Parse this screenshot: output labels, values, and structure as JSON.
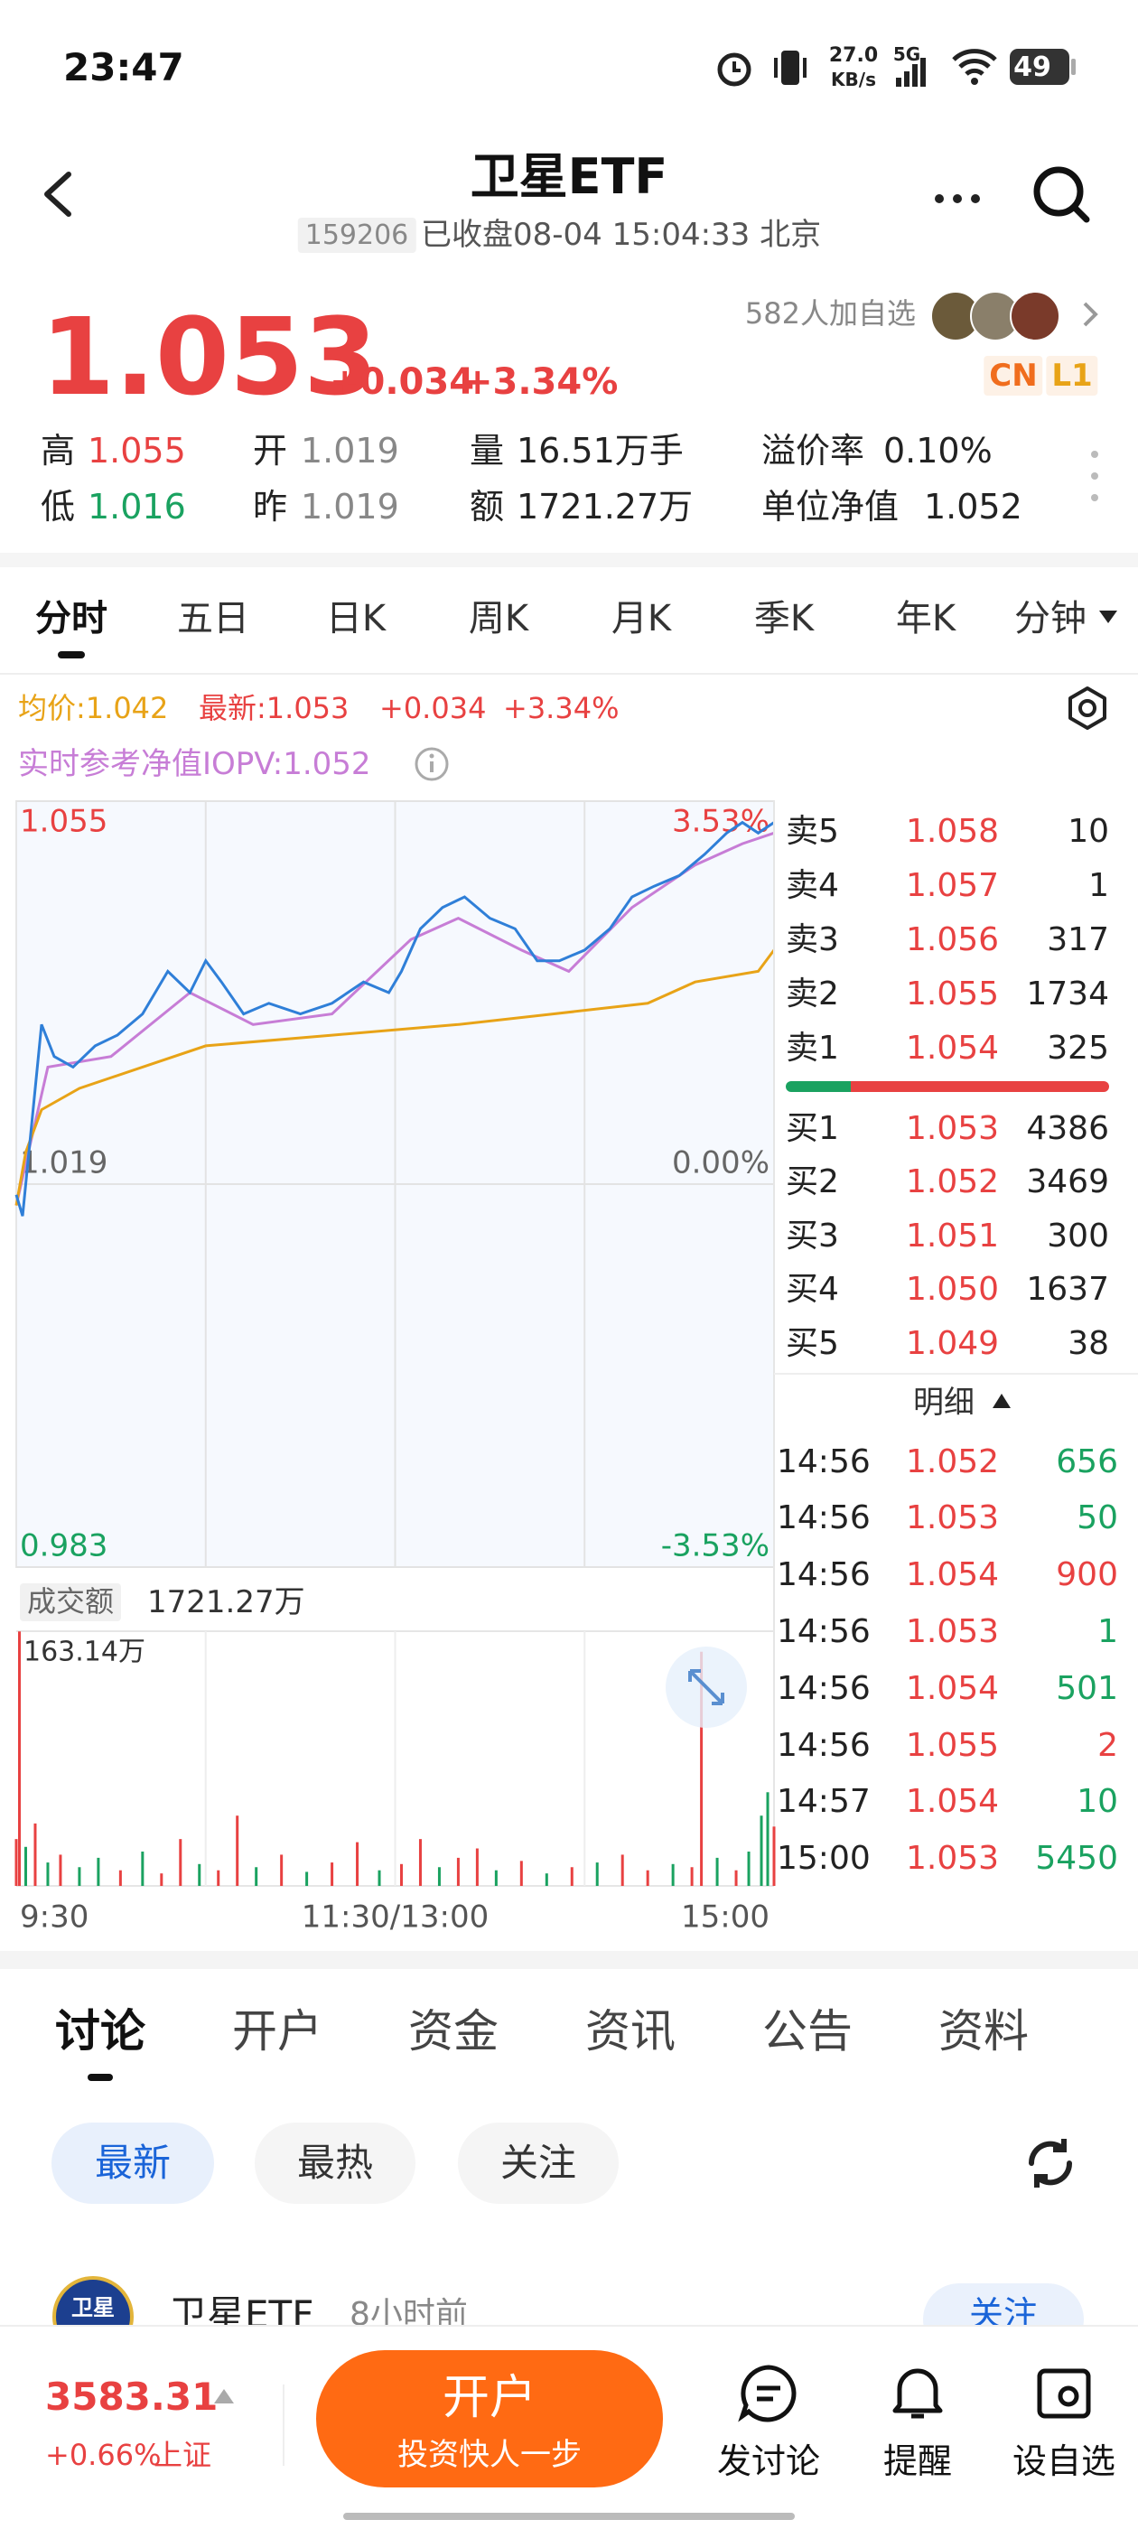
{
  "status_bar": {
    "time": "23:47",
    "net_speed": "27.0",
    "net_unit": "KB/s",
    "signal": "5G",
    "battery": "49"
  },
  "header": {
    "title": "卫星ETF",
    "code": "159206",
    "status": "已收盘08-04 15:04:33 北京"
  },
  "quote": {
    "price": "1.053",
    "change": "+0.034",
    "change_pct": "+3.34%",
    "watchers": "582人加自选",
    "badges": [
      "CN",
      "L1"
    ],
    "stats": [
      {
        "label": "高",
        "value": "1.055"
      },
      {
        "label": "开",
        "value": "1.019"
      },
      {
        "label": "量",
        "value": "16.51万手"
      },
      {
        "label": "溢价率",
        "value": "0.10%"
      },
      {
        "label": "低",
        "value": "1.016"
      },
      {
        "label": "昨",
        "value": "1.019"
      },
      {
        "label": "额",
        "value": "1721.27万"
      },
      {
        "label": "单位净值",
        "value": "1.052"
      }
    ]
  },
  "chart_tabs": [
    "分时",
    "五日",
    "日K",
    "周K",
    "月K",
    "季K",
    "年K",
    "分钟"
  ],
  "legend": {
    "avg": "均价:1.042",
    "latest": "最新:1.053",
    "change": "+0.034",
    "change_pct": "+3.34%",
    "iopv": "实时参考净值IOPV:1.052"
  },
  "chart_data": [
    {
      "type": "line",
      "xlim": [
        0,
        240
      ],
      "xticks": [
        {
          "value": 0,
          "label": "9:30"
        },
        {
          "value": 120,
          "label": "11:30/13:00"
        },
        {
          "value": 240,
          "label": "15:00"
        }
      ],
      "ylim": [
        0.983,
        1.055
      ],
      "yticks": [
        1.055,
        1.019,
        0.983
      ],
      "y2lim": [
        -3.53,
        3.53
      ],
      "y2ticks": [
        {
          "value": 3.53,
          "label": "3.53%"
        },
        {
          "value": 0,
          "label": "0.00%"
        },
        {
          "value": -3.53,
          "label": "-3.53%"
        }
      ],
      "grid": true,
      "series": [
        {
          "color": "#c77dd6",
          "x": [
            0,
            10,
            30,
            55,
            75,
            100,
            125,
            140,
            160,
            175,
            195,
            215,
            230,
            240
          ],
          "values": [
            1.017,
            1.03,
            1.031,
            1.037,
            1.034,
            1.035,
            1.042,
            1.044,
            1.041,
            1.039,
            1.045,
            1.049,
            1.051,
            1.052
          ]
        },
        {
          "color": "#e8a317",
          "x": [
            0,
            3,
            8,
            20,
            40,
            60,
            100,
            140,
            170,
            200,
            215,
            235,
            240
          ],
          "values": [
            1.017,
            1.022,
            1.026,
            1.028,
            1.03,
            1.032,
            1.033,
            1.034,
            1.035,
            1.036,
            1.038,
            1.039,
            1.041
          ]
        },
        {
          "color": "#2f7fd8",
          "x": [
            0,
            2,
            5,
            8,
            12,
            18,
            25,
            32,
            40,
            48,
            55,
            60,
            65,
            72,
            80,
            90,
            100,
            110,
            118,
            122,
            128,
            135,
            142,
            150,
            158,
            165,
            172,
            180,
            188,
            195,
            202,
            210,
            218,
            225,
            230,
            235,
            240
          ],
          "values": [
            1.018,
            1.016,
            1.025,
            1.034,
            1.031,
            1.03,
            1.032,
            1.033,
            1.035,
            1.039,
            1.037,
            1.04,
            1.038,
            1.035,
            1.036,
            1.035,
            1.036,
            1.038,
            1.037,
            1.039,
            1.043,
            1.045,
            1.046,
            1.044,
            1.043,
            1.04,
            1.04,
            1.041,
            1.043,
            1.046,
            1.047,
            1.048,
            1.05,
            1.052,
            1.053,
            1.052,
            1.053
          ]
        }
      ]
    },
    {
      "type": "bar",
      "label": "成交额",
      "total": "1721.27万",
      "xlim": [
        0,
        240
      ],
      "ylim": [
        0,
        163.14
      ],
      "yticks": [
        {
          "value": 163.14,
          "label": "163.14万"
        }
      ],
      "x": [
        0,
        1,
        3,
        6,
        10,
        14,
        20,
        26,
        33,
        40,
        46,
        52,
        58,
        64,
        70,
        76,
        84,
        92,
        100,
        108,
        115,
        122,
        128,
        134,
        140,
        146,
        152,
        160,
        168,
        176,
        184,
        192,
        200,
        208,
        214,
        217,
        222,
        228,
        232,
        236,
        238,
        240
      ],
      "values": [
        30,
        163,
        25,
        40,
        15,
        20,
        12,
        18,
        10,
        22,
        8,
        30,
        14,
        10,
        45,
        12,
        20,
        9,
        15,
        28,
        10,
        14,
        30,
        12,
        18,
        24,
        10,
        16,
        8,
        12,
        15,
        20,
        10,
        14,
        12,
        150,
        18,
        10,
        22,
        45,
        60,
        38
      ],
      "colors": [
        "#e84141",
        "#e84141",
        "#1aa260",
        "#e84141",
        "#1aa260",
        "#e84141",
        "#1aa260",
        "#1aa260",
        "#e84141",
        "#1aa260",
        "#e84141",
        "#e84141",
        "#1aa260",
        "#e84141",
        "#e84141",
        "#1aa260",
        "#e84141",
        "#1aa260",
        "#e84141",
        "#e84141",
        "#1aa260",
        "#e84141",
        "#e84141",
        "#1aa260",
        "#e84141",
        "#e84141",
        "#1aa260",
        "#e84141",
        "#1aa260",
        "#e84141",
        "#1aa260",
        "#e84141",
        "#e84141",
        "#1aa260",
        "#e84141",
        "#e84141",
        "#1aa260",
        "#e84141",
        "#1aa260",
        "#1aa260",
        "#1aa260",
        "#e84141"
      ]
    }
  ],
  "order_book": {
    "asks": [
      {
        "label": "卖5",
        "price": "1.058",
        "volume": "10"
      },
      {
        "label": "卖4",
        "price": "1.057",
        "volume": "1"
      },
      {
        "label": "卖3",
        "price": "1.056",
        "volume": "317"
      },
      {
        "label": "卖2",
        "price": "1.055",
        "volume": "1734"
      },
      {
        "label": "卖1",
        "price": "1.054",
        "volume": "325"
      }
    ],
    "bids": [
      {
        "label": "买1",
        "price": "1.053",
        "volume": "4386"
      },
      {
        "label": "买2",
        "price": "1.052",
        "volume": "3469"
      },
      {
        "label": "买3",
        "price": "1.051",
        "volume": "300"
      },
      {
        "label": "买4",
        "price": "1.050",
        "volume": "1637"
      },
      {
        "label": "买5",
        "price": "1.049",
        "volume": "38"
      }
    ]
  },
  "details": {
    "title": "明细",
    "trades": [
      {
        "time": "14:56",
        "price": "1.052",
        "volume": "656",
        "color": "#1aa260"
      },
      {
        "time": "14:56",
        "price": "1.053",
        "volume": "50",
        "color": "#1aa260"
      },
      {
        "time": "14:56",
        "price": "1.054",
        "volume": "900",
        "color": "#e84141"
      },
      {
        "time": "14:56",
        "price": "1.053",
        "volume": "1",
        "color": "#1aa260"
      },
      {
        "time": "14:56",
        "price": "1.054",
        "volume": "501",
        "color": "#1aa260"
      },
      {
        "time": "14:56",
        "price": "1.055",
        "volume": "2",
        "color": "#e84141"
      },
      {
        "time": "14:57",
        "price": "1.054",
        "volume": "10",
        "color": "#1aa260"
      },
      {
        "time": "15:00",
        "price": "1.053",
        "volume": "5450",
        "color": "#1aa260"
      }
    ]
  },
  "bottom_tabs": [
    "讨论",
    "开户",
    "资金",
    "资讯",
    "公告",
    "资料"
  ],
  "chips": [
    "最新",
    "最热",
    "关注"
  ],
  "post": {
    "avatar": "卫星",
    "name": "卫星ETF",
    "time": "8小时前",
    "follow": "关注"
  },
  "bottom_bar": {
    "index": "3583.31",
    "index_change": "+0.66%",
    "index_name": "上证",
    "button_title": "开户",
    "button_subtitle": "投资快人一步",
    "actions": [
      "发讨论",
      "提醒",
      "设自选"
    ]
  }
}
